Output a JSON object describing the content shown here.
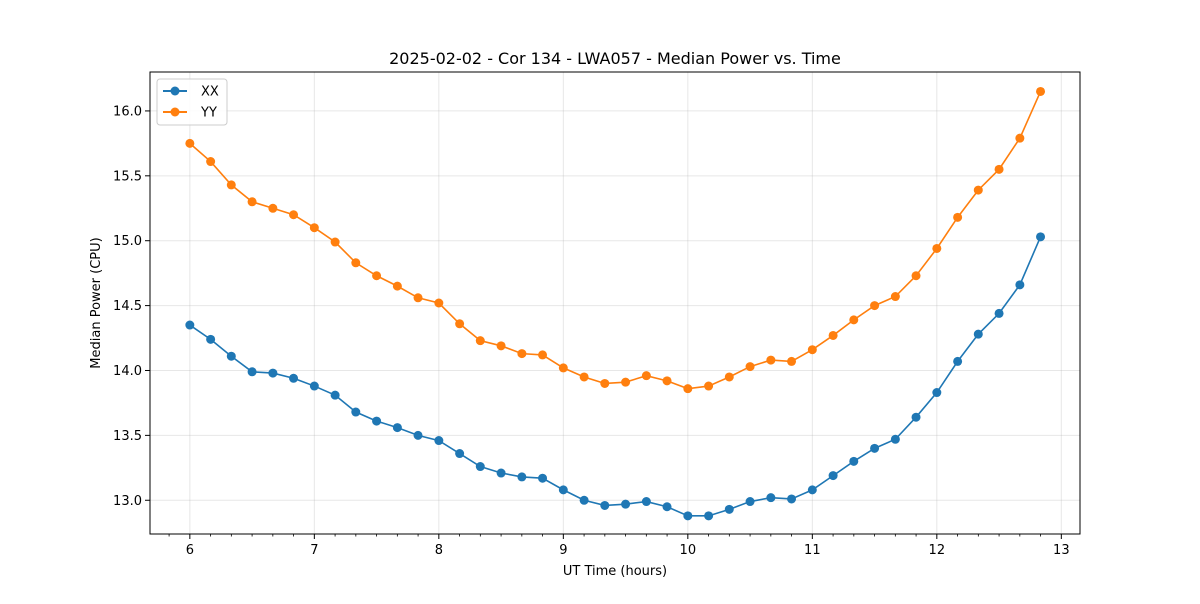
{
  "chart_data": {
    "type": "line",
    "title": "2025-02-02 - Cor 134 - LWA057 - Median Power vs. Time",
    "xlabel": "UT Time (hours)",
    "ylabel": "Median Power (CPU)",
    "xlim": [
      5.68,
      13.15
    ],
    "ylim": [
      12.74,
      16.3
    ],
    "xticks": [
      6,
      7,
      8,
      9,
      10,
      11,
      12,
      13
    ],
    "yticks": [
      13.0,
      13.5,
      14.0,
      14.5,
      15.0,
      15.5,
      16.0
    ],
    "xtick_labels": [
      "6",
      "7",
      "8",
      "9",
      "10",
      "11",
      "12",
      "13"
    ],
    "ytick_labels": [
      "13.0",
      "13.5",
      "14.0",
      "14.5",
      "15.0",
      "15.5",
      "16.0"
    ],
    "grid": true,
    "legend_position": "top-left",
    "x": [
      6.0,
      6.167,
      6.333,
      6.5,
      6.667,
      6.833,
      7.0,
      7.167,
      7.333,
      7.5,
      7.667,
      7.833,
      8.0,
      8.167,
      8.333,
      8.5,
      8.667,
      8.833,
      9.0,
      9.167,
      9.333,
      9.5,
      9.667,
      9.833,
      10.0,
      10.167,
      10.333,
      10.5,
      10.667,
      10.833,
      11.0,
      11.167,
      11.333,
      11.5,
      11.667,
      11.833,
      12.0,
      12.167,
      12.333,
      12.5,
      12.667,
      12.833
    ],
    "series": [
      {
        "name": "XX",
        "color": "#1f77b4",
        "values": [
          14.35,
          14.24,
          14.11,
          13.99,
          13.98,
          13.94,
          13.88,
          13.81,
          13.68,
          13.61,
          13.56,
          13.5,
          13.46,
          13.36,
          13.26,
          13.21,
          13.18,
          13.17,
          13.08,
          13.0,
          12.96,
          12.97,
          12.99,
          12.95,
          12.88,
          12.88,
          12.93,
          12.99,
          13.02,
          13.01,
          13.08,
          13.19,
          13.3,
          13.4,
          13.47,
          13.64,
          13.83,
          14.07,
          14.28,
          14.44,
          14.66,
          15.03
        ]
      },
      {
        "name": "YY",
        "color": "#ff7f0e",
        "values": [
          15.75,
          15.61,
          15.43,
          15.3,
          15.25,
          15.2,
          15.1,
          14.99,
          14.83,
          14.73,
          14.65,
          14.56,
          14.52,
          14.36,
          14.23,
          14.19,
          14.13,
          14.12,
          14.02,
          13.95,
          13.9,
          13.91,
          13.96,
          13.92,
          13.86,
          13.88,
          13.95,
          14.03,
          14.08,
          14.07,
          14.16,
          14.27,
          14.39,
          14.5,
          14.57,
          14.73,
          14.94,
          15.18,
          15.39,
          15.55,
          15.79,
          16.15
        ]
      }
    ]
  }
}
